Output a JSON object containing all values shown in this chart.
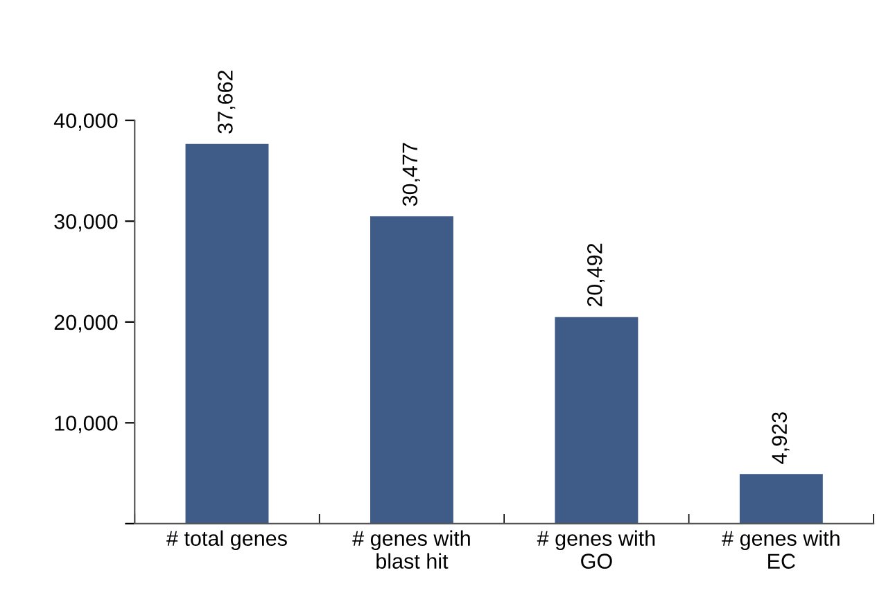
{
  "chart_data": {
    "type": "bar",
    "categories": [
      "# total genes",
      "# genes with\nblast hit",
      "# genes with\nGO",
      "# genes with\nEC"
    ],
    "values": [
      37662,
      30477,
      20492,
      4923
    ],
    "color": "#3f5b88",
    "value_labels": [
      "37,662",
      "30,477",
      "20,492",
      "4,923"
    ],
    "ylim": [
      0,
      40000
    ],
    "yticks": [
      {
        "value": 0,
        "label": null
      },
      {
        "value": 10000,
        "label": "10,000"
      },
      {
        "value": 20000,
        "label": "20,000"
      },
      {
        "value": 30000,
        "label": "30,000"
      },
      {
        "value": 40000,
        "label": "40,000"
      }
    ],
    "grid": false,
    "legend": false
  }
}
